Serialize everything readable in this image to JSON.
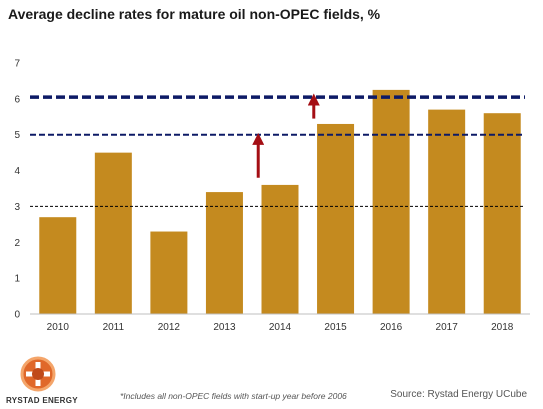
{
  "title": "Average decline rates for mature oil non-OPEC fields, %",
  "footnote": "*Includes all non-OPEC fields with start-up year before 2006",
  "source": "Source: Rystad Energy UCube",
  "brand": {
    "name": "RYSTAD ENERGY"
  },
  "colors": {
    "bar": "#c48a1f",
    "line_thick": "#0d1a66",
    "line_thin": "#000000",
    "arrow": "#a40e14"
  },
  "chart_data": {
    "type": "bar",
    "title": "Average decline rates for mature oil non-OPEC fields, %",
    "categories": [
      "2010",
      "2011",
      "2012",
      "2013",
      "2014",
      "2015",
      "2016",
      "2017",
      "2018"
    ],
    "values": [
      2.7,
      4.5,
      2.3,
      3.4,
      3.6,
      5.3,
      6.25,
      5.7,
      5.6
    ],
    "ylim": [
      0,
      7
    ],
    "yticks": [
      "0",
      "1",
      "2",
      "3",
      "4",
      "5",
      "6",
      "7"
    ],
    "grid": false,
    "reference_lines": [
      {
        "y": 3.0,
        "style": "thin-dashed"
      },
      {
        "y": 5.0,
        "style": "medium-dashed"
      },
      {
        "y": 6.05,
        "style": "thick-dashed"
      }
    ],
    "arrows": [
      {
        "x": "2014",
        "from": 3.8,
        "to": 5.05
      },
      {
        "x": "2015",
        "from": 5.45,
        "to": 6.15
      }
    ]
  }
}
